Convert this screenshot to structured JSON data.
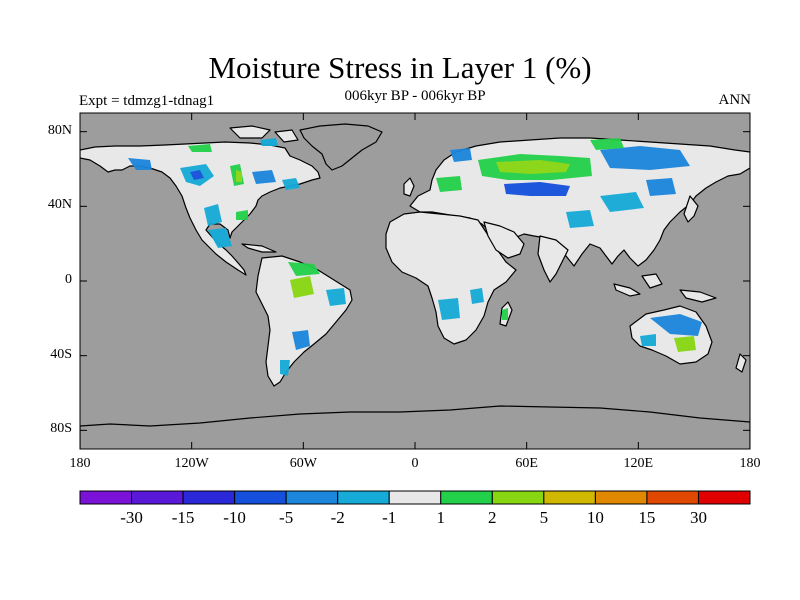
{
  "title": "Moisture Stress in Layer 1 (%)",
  "subtitle": "006kyr BP - 006kyr BP",
  "left_label": "Expt = tdmzg1-tdnag1",
  "right_label": "ANN",
  "colors": {
    "ocean": "#9d9d9d",
    "land": "#e8e8e8",
    "coast": "#000000"
  },
  "lat_ticks": [
    {
      "lat": 80,
      "label": "80N"
    },
    {
      "lat": 40,
      "label": "40N"
    },
    {
      "lat": 0,
      "label": "0"
    },
    {
      "lat": -40,
      "label": "40S"
    },
    {
      "lat": -80,
      "label": "80S"
    }
  ],
  "lon_ticks": [
    {
      "lon": -180,
      "label": "180"
    },
    {
      "lon": -120,
      "label": "120W"
    },
    {
      "lon": -60,
      "label": "60W"
    },
    {
      "lon": 0,
      "label": "0"
    },
    {
      "lon": 60,
      "label": "60E"
    },
    {
      "lon": 120,
      "label": "120E"
    },
    {
      "lon": 180,
      "label": "180"
    }
  ],
  "colorbar": {
    "colors": [
      "#7a12d8",
      "#5a18d8",
      "#2a28d8",
      "#1550dc",
      "#1b86dc",
      "#15aad8",
      "#e8e8e8",
      "#22d04a",
      "#88d612",
      "#d0b800",
      "#e08800",
      "#e04800",
      "#e00000"
    ],
    "labels": [
      "-30",
      "-15",
      "-10",
      "-5",
      "-2",
      "-1",
      "1",
      "2",
      "5",
      "10",
      "15",
      "30"
    ]
  }
}
